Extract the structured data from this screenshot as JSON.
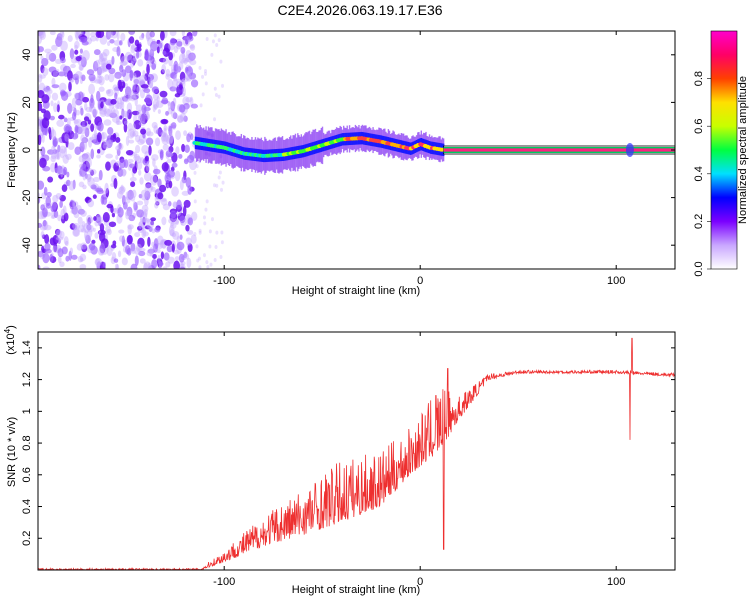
{
  "title": "C2E4.2026.063.19.17.E36",
  "chart_data": [
    {
      "type": "heatmap",
      "name": "spectrogram",
      "xlabel": "Height of straight line (km)",
      "ylabel": "Frequency (Hz)",
      "xlim": [
        -195,
        130
      ],
      "ylim": [
        -50,
        50
      ],
      "xticks": [
        -100,
        0,
        100
      ],
      "yticks": [
        -40,
        -20,
        0,
        20,
        40
      ],
      "noise_region_x": [
        -195,
        -115
      ],
      "signal_x_start": -115,
      "steady_line_x_start": 12,
      "steady_line_freq": 0,
      "burst_x": 107,
      "ridge": [
        {
          "x": -115,
          "f": 3
        },
        {
          "x": -100,
          "f": 1
        },
        {
          "x": -90,
          "f": -1.5
        },
        {
          "x": -80,
          "f": -2.5
        },
        {
          "x": -70,
          "f": -2
        },
        {
          "x": -60,
          "f": -0.5
        },
        {
          "x": -50,
          "f": 2
        },
        {
          "x": -40,
          "f": 4.5
        },
        {
          "x": -30,
          "f": 5
        },
        {
          "x": -20,
          "f": 3.5
        },
        {
          "x": -10,
          "f": 1.5
        },
        {
          "x": -5,
          "f": 0.5
        },
        {
          "x": 0,
          "f": 2.5
        },
        {
          "x": 5,
          "f": 1
        },
        {
          "x": 12,
          "f": 0
        }
      ],
      "colorbar": {
        "label": "Normalized spectral amplitude",
        "range": [
          0.0,
          1.0
        ],
        "ticks": [
          0.0,
          0.2,
          0.4,
          0.6,
          0.8
        ],
        "tick_labels": [
          "0.0",
          "0.2",
          "0.4",
          "0.6",
          "0.8"
        ],
        "colors": [
          "#ffffff",
          "#c9a7ff",
          "#7b00ff",
          "#0000ff",
          "#00e0ff",
          "#00ff40",
          "#c8ff00",
          "#ffe000",
          "#ff4000",
          "#ff0066",
          "#ff00cc"
        ]
      }
    },
    {
      "type": "line",
      "name": "snr",
      "xlabel": "Height of straight line (km)",
      "ylabel": "SNR (10 * v/v)",
      "scale_note_base": "(x10",
      "scale_note_exp": "4",
      "scale_note_close": ")",
      "xlim": [
        -195,
        130
      ],
      "ylim": [
        0,
        1.5
      ],
      "xticks": [
        -100,
        0,
        100
      ],
      "yticks": [
        0.2,
        0.4,
        0.6,
        0.8,
        1.0,
        1.2,
        1.4
      ],
      "ytick_labels": [
        "0.2",
        "0.4",
        "0.6",
        "0.8",
        "1",
        "1.2",
        "1.4"
      ],
      "color": "#ee3030",
      "envelope": [
        {
          "x": -195,
          "base": 0.0,
          "amp": 0.01
        },
        {
          "x": -112,
          "base": 0.0,
          "amp": 0.01
        },
        {
          "x": -100,
          "base": 0.05,
          "amp": 0.08
        },
        {
          "x": -80,
          "base": 0.15,
          "amp": 0.2
        },
        {
          "x": -60,
          "base": 0.22,
          "amp": 0.3
        },
        {
          "x": -40,
          "base": 0.3,
          "amp": 0.4
        },
        {
          "x": -20,
          "base": 0.4,
          "amp": 0.35
        },
        {
          "x": -5,
          "base": 0.6,
          "amp": 0.3
        },
        {
          "x": 10,
          "base": 0.75,
          "amp": 0.4
        },
        {
          "x": 20,
          "base": 0.95,
          "amp": 0.15
        },
        {
          "x": 35,
          "base": 1.2,
          "amp": 0.04
        },
        {
          "x": 50,
          "base": 1.24,
          "amp": 0.02
        },
        {
          "x": 100,
          "base": 1.24,
          "amp": 0.02
        },
        {
          "x": 130,
          "base": 1.22,
          "amp": 0.02
        }
      ],
      "spikes": [
        {
          "x": 12,
          "y": 0.13
        },
        {
          "x": 8,
          "y": 1.1
        },
        {
          "x": 14,
          "y": 1.27
        },
        {
          "x": 107,
          "y": 0.82
        },
        {
          "x": 108,
          "y": 1.46
        }
      ]
    }
  ]
}
